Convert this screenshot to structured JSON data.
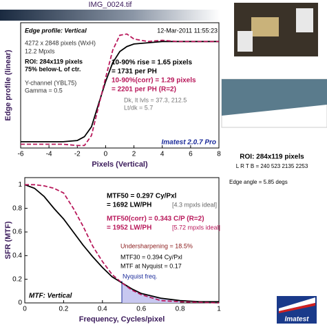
{
  "title": "IMG_0024.tif",
  "chart_data": [
    {
      "type": "line",
      "xlabel": "Pixels (Vertical)",
      "ylabel": "Edge profile (linear)",
      "xlim": [
        -6,
        8
      ],
      "xticks": [
        -6,
        -4,
        -2,
        0,
        2,
        4,
        6,
        8
      ],
      "ylim": [
        0,
        1
      ],
      "x": [
        -6,
        -5,
        -4,
        -3,
        -2,
        -1.5,
        -1,
        -0.5,
        0,
        0.5,
        1,
        1.5,
        2,
        3,
        4,
        5,
        6,
        7,
        8
      ],
      "series": [
        {
          "name": "Edge profile",
          "color": "#000000",
          "values": [
            0.05,
            0.05,
            0.05,
            0.05,
            0.06,
            0.09,
            0.17,
            0.35,
            0.53,
            0.68,
            0.77,
            0.81,
            0.83,
            0.84,
            0.85,
            0.85,
            0.85,
            0.85,
            0.85
          ]
        },
        {
          "name": "Corrected",
          "color": "#b8175a",
          "values": [
            0.03,
            0.03,
            0.03,
            0.03,
            0.02,
            0.02,
            0.1,
            0.33,
            0.56,
            0.78,
            0.9,
            0.91,
            0.87,
            0.85,
            0.86,
            0.85,
            0.85,
            0.85,
            0.85
          ]
        }
      ],
      "annotations": [
        "Edge profile: Vertical",
        "12-Mar-2011 11:55:23",
        "4272 x 2848 pixels (WxH)",
        "12.2 Mpxls",
        "ROI: 284x119 pixels",
        "75% below-L of ctr.",
        "Y-channel  (YBL75)",
        "Gamma = 0.5",
        "10-90% rise = 1.65 pixels",
        "= 1731 per PH",
        "10-90%(corr) = 1.29 pixels",
        "= 2201 per PH  (R=2)",
        "Dk, lt lvls = 37.3, 212.5",
        "Lt/dk = 5.7",
        "Imatest 2.0.7 Pro"
      ]
    },
    {
      "type": "line",
      "xlabel": "Frequency, Cycles/pixel",
      "ylabel": "SFR (MTF)",
      "xlim": [
        0,
        1
      ],
      "xticks": [
        0,
        0.2,
        0.4,
        0.6,
        0.8,
        1
      ],
      "ylim": [
        0,
        1.06
      ],
      "yticks": [
        0,
        0.2,
        0.4,
        0.6,
        0.8,
        1
      ],
      "nyquist": 0.5,
      "x": [
        0,
        0.05,
        0.1,
        0.15,
        0.2,
        0.25,
        0.3,
        0.35,
        0.4,
        0.45,
        0.5,
        0.55,
        0.6,
        0.7,
        0.8,
        0.9,
        1
      ],
      "series": [
        {
          "name": "MTF",
          "color": "#000000",
          "values": [
            1,
            0.97,
            0.9,
            0.8,
            0.71,
            0.6,
            0.49,
            0.39,
            0.3,
            0.22,
            0.17,
            0.12,
            0.08,
            0.04,
            0.02,
            0.01,
            0.01
          ]
        },
        {
          "name": "MTF corrected",
          "color": "#b8175a",
          "values": [
            1,
            1,
            0.99,
            0.97,
            0.93,
            0.8,
            0.65,
            0.48,
            0.35,
            0.24,
            0.17,
            0.11,
            0.07,
            0.02,
            0.01,
            0.005,
            0
          ]
        }
      ],
      "annotations": [
        "MTF50 = 0.297 Cy/Pxl",
        "= 1692 LW/PH",
        "[4.3 mpxls ideal]",
        "MTF50(corr) = 0.343 C/P  (R=2)",
        "= 1952 LW/PH",
        "[5.72 mpxls ideal]",
        "Undersharpening = 18.5%",
        "MTF30 = 0.394 Cy/Pxl",
        "MTF at Nyquist = 0.17",
        "Nyquist freq.",
        "MTF: Vertical"
      ]
    }
  ],
  "side": {
    "roi": "ROI: 284x119 pixels",
    "lrtb": "L R T B = 240 523  2135 2253",
    "angle": "Edge angle = 5.85 degs",
    "logo": "Imatest"
  }
}
